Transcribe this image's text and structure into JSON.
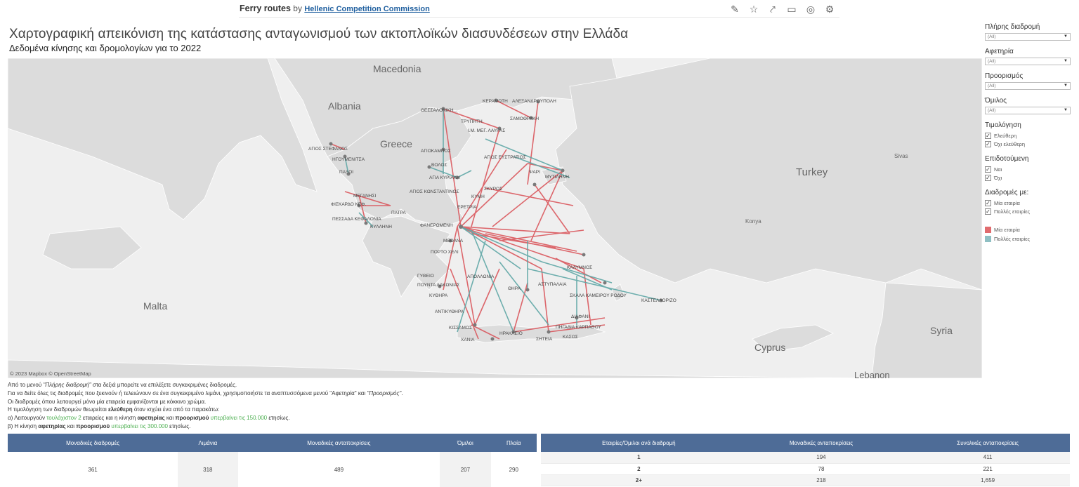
{
  "header": {
    "workbook": "Ferry routes",
    "by": "by",
    "author": "Hellenic Competition Commission",
    "icons": [
      "edit-icon",
      "star-icon",
      "share-icon",
      "comment-icon",
      "alert-icon",
      "settings-icon"
    ]
  },
  "title": "Χαρτογραφική απεικόνιση της κατάστασης ανταγωνισμού των ακτοπλοϊκών διασυνδέσεων στην Ελλάδα",
  "subtitle": "Δεδομένα κίνησης και δρομολογίων για το 2022",
  "map": {
    "credit": "© 2023 Mapbox  © OpenStreetMap",
    "colors": {
      "single": "#d94f55",
      "multi": "#5fa7a6",
      "land": "#dcdcdc",
      "sea": "#efefef"
    },
    "regions": [
      "Macedonia",
      "Albania",
      "Greece",
      "Turkey",
      "Malta",
      "Cyprus",
      "Syria",
      "Sivas",
      "Konya",
      "Lebanon"
    ],
    "ports": [
      "ΘΕΣΣΑΛΟΝΙΚΗ",
      "ΚΕΡΑΜΩΤΗ",
      "ΑΛΕΞΑΝΔΡΟΥΠΟΛΗ",
      "ΣΑΜΟΘΡΑΚΗ",
      "ΤΡΥΠΗΤΗ",
      "Ι.Μ. ΜΕΓ. ΛΑΥΡΑΣ",
      "ΑΓΙΟΣ ΣΤΕΦΑΝΟΣ",
      "ΗΓΟΥΜΕΝΙΤΣΑ",
      "ΠΑΞΟΙ",
      "ΑΓΙΟΚΑΜΠΟΣ",
      "ΒΟΛΟΣ",
      "ΑΓΙΑ ΚΥΡΙΑΚΗ",
      "ΑΓΙΟΣ ΕΥΣΤΡΑΤΙΟΣ",
      "ΨΑΡΙ",
      "ΜΥΤΙΛΗΝΗ",
      "ΑΓΙΟΣ ΚΩΝΣΤΑΝΤΙΝΟΣ",
      "ΚΥΜΗ",
      "ΣΚΥΡΟΣ",
      "ΜΕΓΑΝΗΣΙ",
      "ΦΙΣΚΑΡΔΟ ΚΕΦ.",
      "ΠΑΤΡΑ",
      "ΠΕΣΣΑΔΑ ΚΕΦΑΛΟΝΙΑ",
      "ΚΥΛΛΗΝΗ",
      "ΕΡΕΤΡΙΑ",
      "ΦΑΝΕΡΩΜΕΝΗ",
      "ΜΕΘΑΝΑ",
      "ΠΟΡΤΟ ΧΕΛΙ",
      "ΓΥΘΕΙΟ",
      "ΠΟΥΝΤΑ ΛΑΚΩΝΙΑΣ",
      "ΚΥΘΗΡΑ",
      "ΑΝΤΙΚΥΘΗΡΑ",
      "ΚΙΣΣΑΜΟΣ",
      "ΧΑΝΙΑ",
      "ΑΠΟΛΛΩΝΙΑ",
      "ΘΗΡΑ",
      "ΗΡΑΚΛΕΙΟ",
      "ΣΗΤΕΙΑ",
      "ΑΣΤΥΠΑΛΑΙΑ",
      "ΣΚΑΛΑ ΚΑΜΕΙΡΟΥ ΡΟΔΟΥ",
      "ΚΑΣΤΕΛΛΟΡΙΖΟ",
      "ΔΙΑΦΑΝΙ",
      "ΠΗΓΑΔΙΑ ΚΑΡΠΑΘΟΥ",
      "ΚΑΣΟΣ",
      "ΚΑΛΥΜΝΟΣ"
    ]
  },
  "notes": {
    "line1a": "Από το μενού ",
    "line1b": "\"Πλήρης διαδρομή\"",
    "line1c": " στα δεξιά μπορείτε να επιλέξετε συγκεκριμένες διαδρομές.",
    "line2a": "Για να δείτε όλες τις διαδρομές που ξεκινούν ή τελειώνουν σε ένα συγκεκριμένο λιμάνι, χρησιμοποιήστε τα αναπτυσσόμενα μενού \"Αφετηρία\" και ",
    "line2b": "\"Προορισμός\"",
    "line2c": ".",
    "line3": "Οι διαδρομές όπου λειτουργεί μόνο μία εταιρεία εμφανίζονται με κόκκινο χρώμα.",
    "line4a": "Η τιμολόγηση των διαδρομών θεωρείται ",
    "line4b": "ελεύθερη",
    "line4c": " όταν ισχύει ένα από τα παρακάτω:",
    "line5a": "α) Λειτουργούν ",
    "line5b": "τουλάχιστον 2",
    "line5c": " εταιρείες και η κίνηση ",
    "line5d": "αφετηρίας",
    "line5e": " και ",
    "line5f": "προορισμού",
    "line5g": " υπερβαίνει τις 150.000",
    "line5h": " ετησίως.",
    "line6a": "β) Η κίνηση  ",
    "line6b": "αφετηρίας",
    "line6c": " και ",
    "line6d": "προορισμού",
    "line6e": " υπερβαίνει τις 300.000",
    "line6f": " ετησίως."
  },
  "filters": {
    "route": {
      "label": "Πλήρης διαδρομή",
      "value": "(All)"
    },
    "origin": {
      "label": "Αφετηρία",
      "value": "(All)"
    },
    "destination": {
      "label": "Προορισμός",
      "value": "(All)"
    },
    "group": {
      "label": "Όμιλος",
      "value": "(All)"
    },
    "pricing": {
      "label": "Τιμολόγηση",
      "options": [
        "Ελεύθερη",
        "Όχι ελεύθερη"
      ]
    },
    "subsidized": {
      "label": "Επιδοτούμενη",
      "options": [
        "Ναι",
        "Όχι"
      ]
    },
    "routes_with": {
      "label": "Διαδρομές με:",
      "options": [
        "Μία εταιρία",
        "Πολλές εταιρίες"
      ]
    },
    "legend": [
      "Μία εταιρία",
      "Πολλές εταιρίες"
    ]
  },
  "kpi_table": {
    "headers": [
      "Μοναδικές διαδρομές",
      "Λιμάνια",
      "Μοναδικές ανταποκρίσεις",
      "Όμιλοι",
      "Πλοία"
    ],
    "values": [
      "361",
      "318",
      "489",
      "207",
      "290"
    ]
  },
  "companies_table": {
    "headers": [
      "Εταιρίες/Όμιλοι ανά διαδρομή",
      "Μοναδικές ανταποκρίσεις",
      "Συνολικές ανταποκρίσεις"
    ],
    "rows": [
      [
        "1",
        "194",
        "411"
      ],
      [
        "2",
        "78",
        "221"
      ],
      [
        "2+",
        "218",
        "1,659"
      ]
    ]
  }
}
